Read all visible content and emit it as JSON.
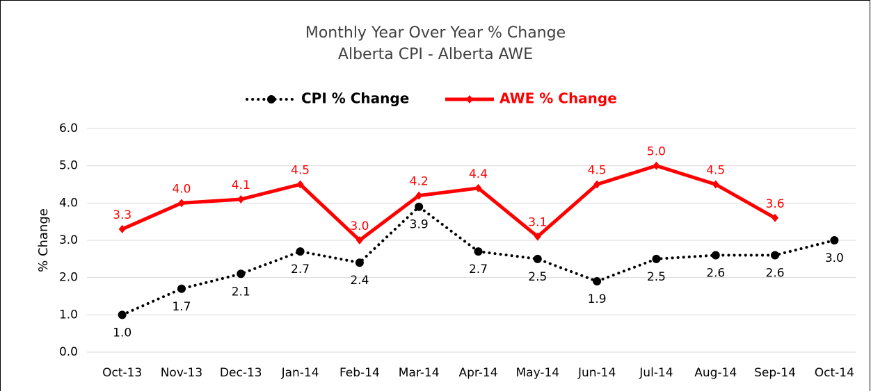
{
  "chart_data": {
    "type": "line",
    "title": "Monthly Year Over Year % Change",
    "subtitle": "Alberta CPI - Alberta AWE",
    "y_label": "% Change",
    "categories": [
      "Oct-13",
      "Nov-13",
      "Dec-13",
      "Jan-14",
      "Feb-14",
      "Mar-14",
      "Apr-14",
      "May-14",
      "Jun-14",
      "Jul-14",
      "Aug-14",
      "Sep-14",
      "Oct-14"
    ],
    "series": [
      {
        "name": "CPI % Change",
        "color": "#000000",
        "style": "dotted",
        "marker": "circle",
        "values": [
          1.0,
          1.7,
          2.1,
          2.7,
          2.4,
          3.9,
          2.7,
          2.5,
          1.9,
          2.5,
          2.6,
          2.6,
          3.0
        ],
        "value_labels": [
          "1.0",
          "1.7",
          "2.1",
          "2.7",
          "2.4",
          "3.9",
          "2.7",
          "2.5",
          "1.9",
          "2.5",
          "2.6",
          "2.6",
          "3.0"
        ]
      },
      {
        "name": "AWE % Change",
        "color": "#ff0000",
        "style": "solid",
        "marker": "diamond",
        "values": [
          3.3,
          4.0,
          4.1,
          4.5,
          3.0,
          4.2,
          4.4,
          3.1,
          4.5,
          5.0,
          4.5,
          3.6,
          null
        ],
        "value_labels": [
          "3.3",
          "4.0",
          "4.1",
          "4.5",
          "3.0",
          "4.2",
          "4.4",
          "3.1",
          "4.5",
          "5.0",
          "4.5",
          "3.6",
          null
        ]
      }
    ],
    "ylim": [
      0,
      6
    ],
    "yticks": [
      {
        "value": 0,
        "label": "0.0"
      },
      {
        "value": 1,
        "label": "1.0"
      },
      {
        "value": 2,
        "label": "2.0"
      },
      {
        "value": 3,
        "label": "3.0"
      },
      {
        "value": 4,
        "label": "4.0"
      },
      {
        "value": 5,
        "label": "5.0"
      },
      {
        "value": 6,
        "label": "6.0"
      }
    ],
    "grid": true,
    "legend": "top"
  }
}
